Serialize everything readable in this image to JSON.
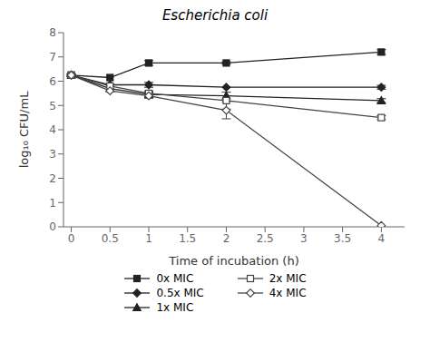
{
  "chart_data": {
    "type": "line",
    "title": "Escherichia coli",
    "xlabel": "Time of incubation (h)",
    "ylabel": "log₁₀ CFU/mL",
    "xlim": [
      -0.1,
      4.3
    ],
    "ylim": [
      0,
      8
    ],
    "xticks": [
      0,
      0.5,
      1,
      1.5,
      2,
      2.5,
      3,
      3.5,
      4
    ],
    "yticks": [
      0,
      1,
      2,
      3,
      4,
      5,
      6,
      7,
      8
    ],
    "grid": false,
    "legend": "bottom",
    "series": [
      {
        "name": "0x MIC",
        "x": [
          0,
          0.5,
          1,
          2,
          4
        ],
        "values": [
          6.25,
          6.15,
          6.75,
          6.75,
          7.2
        ],
        "errors": [
          0.05,
          0.0,
          0.1,
          0.05,
          0.1
        ],
        "marker": "square",
        "color": "#222222",
        "line_style": "solid"
      },
      {
        "name": "0.5x MIC",
        "x": [
          0,
          0.5,
          1,
          2,
          4
        ],
        "values": [
          6.25,
          5.85,
          5.85,
          5.75,
          5.75
        ],
        "errors": [
          0.05,
          0.0,
          0.1,
          0.0,
          0.08
        ],
        "marker": "diamond",
        "color": "#222222",
        "line_style": "solid"
      },
      {
        "name": "1x MIC",
        "x": [
          0,
          0.5,
          1,
          2,
          4
        ],
        "values": [
          6.25,
          5.7,
          5.45,
          5.4,
          5.2
        ],
        "errors": [
          0.05,
          0.0,
          0.1,
          0.0,
          0.08
        ],
        "marker": "triangle",
        "color": "#222222",
        "line_style": "solid"
      },
      {
        "name": "2x MIC",
        "x": [
          0,
          0.5,
          1,
          2,
          4
        ],
        "values": [
          6.25,
          5.8,
          5.5,
          5.2,
          4.5
        ],
        "errors": [
          0.05,
          0.0,
          0.1,
          0.35,
          0.08
        ],
        "marker": "square_open",
        "color": "#444444",
        "line_style": "solid"
      },
      {
        "name": "4x MIC",
        "x": [
          0,
          0.5,
          1,
          2,
          4
        ],
        "values": [
          6.25,
          5.6,
          5.4,
          4.8,
          0.05
        ],
        "errors": [
          0.05,
          0.0,
          0.1,
          0.35,
          0.0
        ],
        "marker": "diamond_open",
        "color": "#444444",
        "line_style": "solid"
      }
    ]
  }
}
